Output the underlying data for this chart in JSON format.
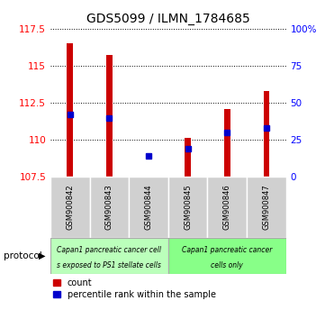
{
  "title": "GDS5099 / ILMN_1784685",
  "samples": [
    "GSM900842",
    "GSM900843",
    "GSM900844",
    "GSM900845",
    "GSM900846",
    "GSM900847"
  ],
  "counts": [
    116.5,
    115.7,
    107.55,
    110.15,
    112.1,
    113.3
  ],
  "count_min": 107.5,
  "percentile_ranks": [
    42,
    40,
    14,
    19,
    30,
    33
  ],
  "ylim_left": [
    107.5,
    117.5
  ],
  "ylim_right": [
    0,
    100
  ],
  "yticks_left": [
    107.5,
    110.0,
    112.5,
    115.0,
    117.5
  ],
  "yticks_right": [
    0,
    25,
    50,
    75,
    100
  ],
  "ytick_labels_left": [
    "107.5",
    "110",
    "112.5",
    "115",
    "117.5"
  ],
  "ytick_labels_right": [
    "0",
    "25",
    "50",
    "75",
    "100%"
  ],
  "bar_color": "#cc0000",
  "dot_color": "#0000cc",
  "plot_bg": "#ffffff",
  "sample_box_color": "#d0d0d0",
  "group1_label_line1": "Capan1 pancreatic cancer cell",
  "group1_label_line2": "s exposed to PS1 stellate cells",
  "group2_label_line1": "Capan1 pancreatic cancer",
  "group2_label_line2": "cells only",
  "group1_color": "#bbffbb",
  "group2_color": "#88ff88",
  "group1_count": 3,
  "group2_count": 3,
  "protocol_label": "protocol",
  "legend_count_label": "count",
  "legend_pct_label": "percentile rank within the sample",
  "bar_width": 0.15
}
